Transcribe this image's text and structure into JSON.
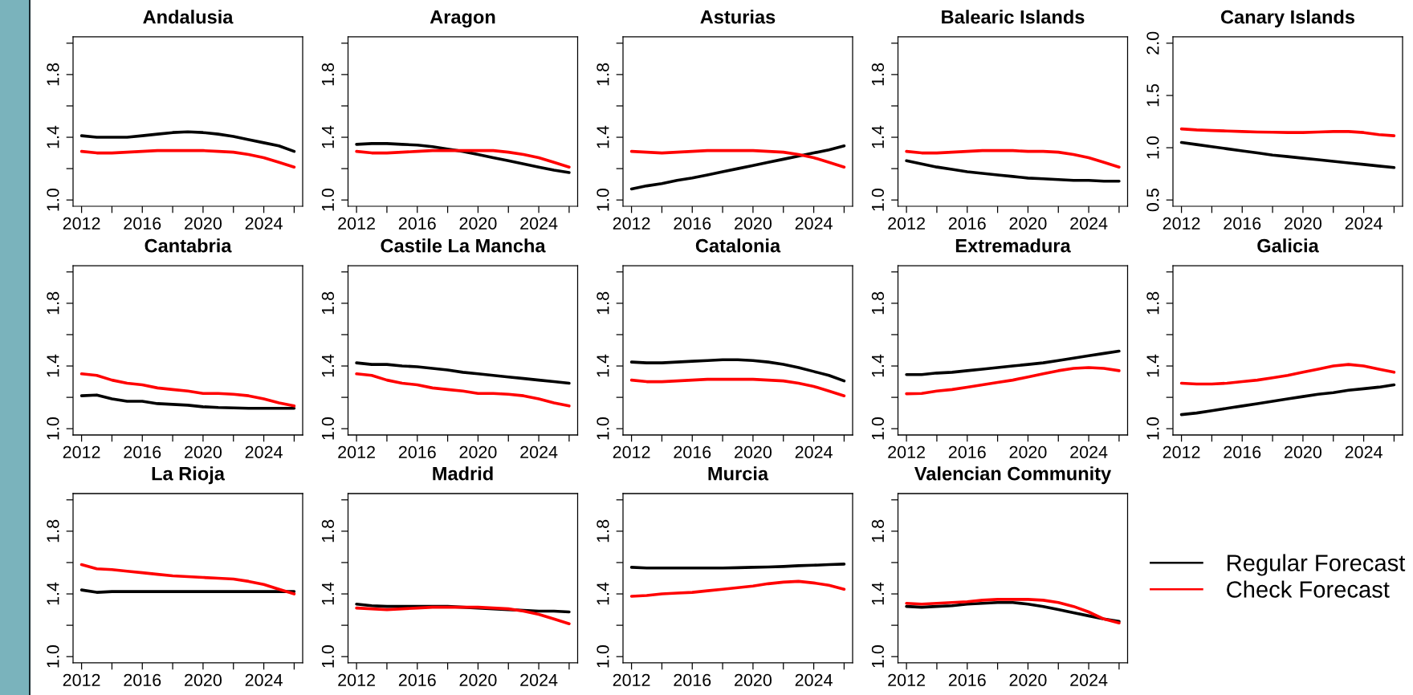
{
  "chart_data": [
    {
      "type": "line",
      "title": "Andalusia",
      "x": [
        2012,
        2013,
        2014,
        2015,
        2016,
        2017,
        2018,
        2019,
        2020,
        2021,
        2022,
        2023,
        2024,
        2025,
        2026
      ],
      "xlim": [
        2011.44,
        2026.56
      ],
      "xticks": [
        2012,
        {
          "value": 2014,
          "label": null
        },
        2016,
        {
          "value": 2018,
          "label": null
        },
        2020,
        {
          "value": 2022,
          "label": null
        },
        2024,
        {
          "value": 2026,
          "label": null
        }
      ],
      "ylim": [
        0.96,
        2.04
      ],
      "yticks": [
        {
          "value": 1.0,
          "label": "1.0"
        },
        {
          "value": 1.2,
          "label": null
        },
        1.4,
        {
          "value": 1.6,
          "label": null
        },
        1.8,
        {
          "value": 2.0,
          "label": null
        }
      ],
      "series": [
        {
          "color": "#000000",
          "values": [
            1.41,
            1.4,
            1.4,
            1.4,
            1.41,
            1.42,
            1.43,
            1.435,
            1.43,
            1.42,
            1.405,
            1.385,
            1.365,
            1.345,
            1.31
          ]
        },
        {
          "color": "#ff0000",
          "values": [
            1.31,
            1.3,
            1.3,
            1.305,
            1.31,
            1.315,
            1.315,
            1.315,
            1.315,
            1.31,
            1.305,
            1.29,
            1.27,
            1.24,
            1.21
          ]
        }
      ]
    },
    {
      "type": "line",
      "title": "Aragon",
      "x": [
        2012,
        2013,
        2014,
        2015,
        2016,
        2017,
        2018,
        2019,
        2020,
        2021,
        2022,
        2023,
        2024,
        2025,
        2026
      ],
      "xlim": [
        2011.44,
        2026.56
      ],
      "xticks": [
        2012,
        {
          "value": 2014,
          "label": null
        },
        2016,
        {
          "value": 2018,
          "label": null
        },
        2020,
        {
          "value": 2022,
          "label": null
        },
        2024,
        {
          "value": 2026,
          "label": null
        }
      ],
      "ylim": [
        0.96,
        2.04
      ],
      "yticks": [
        {
          "value": 1.0,
          "label": "1.0"
        },
        {
          "value": 1.2,
          "label": null
        },
        1.4,
        {
          "value": 1.6,
          "label": null
        },
        1.8,
        {
          "value": 2.0,
          "label": null
        }
      ],
      "series": [
        {
          "color": "#000000",
          "values": [
            1.355,
            1.36,
            1.36,
            1.355,
            1.35,
            1.34,
            1.325,
            1.31,
            1.29,
            1.27,
            1.25,
            1.23,
            1.21,
            1.19,
            1.175
          ]
        },
        {
          "color": "#ff0000",
          "values": [
            1.31,
            1.3,
            1.3,
            1.305,
            1.31,
            1.315,
            1.315,
            1.315,
            1.315,
            1.315,
            1.305,
            1.29,
            1.27,
            1.24,
            1.21
          ]
        }
      ]
    },
    {
      "type": "line",
      "title": "Asturias",
      "x": [
        2012,
        2013,
        2014,
        2015,
        2016,
        2017,
        2018,
        2019,
        2020,
        2021,
        2022,
        2023,
        2024,
        2025,
        2026
      ],
      "xlim": [
        2011.44,
        2026.56
      ],
      "xticks": [
        2012,
        {
          "value": 2014,
          "label": null
        },
        2016,
        {
          "value": 2018,
          "label": null
        },
        2020,
        {
          "value": 2022,
          "label": null
        },
        2024,
        {
          "value": 2026,
          "label": null
        }
      ],
      "ylim": [
        0.96,
        2.04
      ],
      "yticks": [
        {
          "value": 1.0,
          "label": "1.0"
        },
        {
          "value": 1.2,
          "label": null
        },
        1.4,
        {
          "value": 1.6,
          "label": null
        },
        1.8,
        {
          "value": 2.0,
          "label": null
        }
      ],
      "series": [
        {
          "color": "#000000",
          "values": [
            1.07,
            1.09,
            1.105,
            1.125,
            1.14,
            1.16,
            1.18,
            1.2,
            1.22,
            1.24,
            1.26,
            1.28,
            1.3,
            1.32,
            1.345
          ]
        },
        {
          "color": "#ff0000",
          "values": [
            1.31,
            1.305,
            1.3,
            1.305,
            1.31,
            1.315,
            1.315,
            1.315,
            1.315,
            1.31,
            1.305,
            1.29,
            1.27,
            1.24,
            1.21
          ]
        }
      ]
    },
    {
      "type": "line",
      "title": "Balearic Islands",
      "x": [
        2012,
        2013,
        2014,
        2015,
        2016,
        2017,
        2018,
        2019,
        2020,
        2021,
        2022,
        2023,
        2024,
        2025,
        2026
      ],
      "xlim": [
        2011.44,
        2026.56
      ],
      "xticks": [
        2012,
        {
          "value": 2014,
          "label": null
        },
        2016,
        {
          "value": 2018,
          "label": null
        },
        2020,
        {
          "value": 2022,
          "label": null
        },
        2024,
        {
          "value": 2026,
          "label": null
        }
      ],
      "ylim": [
        0.96,
        2.04
      ],
      "yticks": [
        {
          "value": 1.0,
          "label": "1.0"
        },
        {
          "value": 1.2,
          "label": null
        },
        1.4,
        {
          "value": 1.6,
          "label": null
        },
        1.8,
        {
          "value": 2.0,
          "label": null
        }
      ],
      "series": [
        {
          "color": "#000000",
          "values": [
            1.25,
            1.23,
            1.21,
            1.195,
            1.18,
            1.17,
            1.16,
            1.15,
            1.14,
            1.135,
            1.13,
            1.125,
            1.125,
            1.12,
            1.12
          ]
        },
        {
          "color": "#ff0000",
          "values": [
            1.31,
            1.3,
            1.3,
            1.305,
            1.31,
            1.315,
            1.315,
            1.315,
            1.31,
            1.31,
            1.305,
            1.29,
            1.27,
            1.24,
            1.21
          ]
        }
      ]
    },
    {
      "type": "line",
      "title": "Canary Islands",
      "x": [
        2012,
        2013,
        2014,
        2015,
        2016,
        2017,
        2018,
        2019,
        2020,
        2021,
        2022,
        2023,
        2024,
        2025,
        2026
      ],
      "xlim": [
        2011.44,
        2026.56
      ],
      "xticks": [
        2012,
        {
          "value": 2014,
          "label": null
        },
        2016,
        {
          "value": 2018,
          "label": null
        },
        2020,
        {
          "value": 2022,
          "label": null
        },
        2024,
        {
          "value": 2026,
          "label": null
        }
      ],
      "ylim": [
        0.44,
        2.06
      ],
      "yticks": [
        0.5,
        {
          "value": 1.0,
          "label": "1.0"
        },
        1.5,
        {
          "value": 2.0,
          "label": "2.0"
        }
      ],
      "series": [
        {
          "color": "#000000",
          "values": [
            1.05,
            1.03,
            1.01,
            0.99,
            0.97,
            0.95,
            0.93,
            0.915,
            0.9,
            0.885,
            0.87,
            0.855,
            0.84,
            0.825,
            0.81
          ]
        },
        {
          "color": "#ff0000",
          "values": [
            1.18,
            1.17,
            1.165,
            1.16,
            1.155,
            1.15,
            1.148,
            1.145,
            1.145,
            1.15,
            1.155,
            1.155,
            1.145,
            1.125,
            1.115
          ]
        }
      ]
    },
    {
      "type": "line",
      "title": "Cantabria",
      "x": [
        2012,
        2013,
        2014,
        2015,
        2016,
        2017,
        2018,
        2019,
        2020,
        2021,
        2022,
        2023,
        2024,
        2025,
        2026
      ],
      "xlim": [
        2011.44,
        2026.56
      ],
      "xticks": [
        2012,
        {
          "value": 2014,
          "label": null
        },
        2016,
        {
          "value": 2018,
          "label": null
        },
        2020,
        {
          "value": 2022,
          "label": null
        },
        2024,
        {
          "value": 2026,
          "label": null
        }
      ],
      "ylim": [
        0.96,
        2.04
      ],
      "yticks": [
        {
          "value": 1.0,
          "label": "1.0"
        },
        {
          "value": 1.2,
          "label": null
        },
        1.4,
        {
          "value": 1.6,
          "label": null
        },
        1.8,
        {
          "value": 2.0,
          "label": null
        }
      ],
      "series": [
        {
          "color": "#000000",
          "values": [
            1.21,
            1.215,
            1.19,
            1.175,
            1.175,
            1.16,
            1.155,
            1.15,
            1.14,
            1.135,
            1.133,
            1.13,
            1.13,
            1.13,
            1.13
          ]
        },
        {
          "color": "#ff0000",
          "values": [
            1.35,
            1.34,
            1.31,
            1.29,
            1.28,
            1.26,
            1.25,
            1.24,
            1.225,
            1.225,
            1.22,
            1.21,
            1.19,
            1.165,
            1.145
          ]
        }
      ]
    },
    {
      "type": "line",
      "title": "Castile La Mancha",
      "x": [
        2012,
        2013,
        2014,
        2015,
        2016,
        2017,
        2018,
        2019,
        2020,
        2021,
        2022,
        2023,
        2024,
        2025,
        2026
      ],
      "xlim": [
        2011.44,
        2026.56
      ],
      "xticks": [
        2012,
        {
          "value": 2014,
          "label": null
        },
        2016,
        {
          "value": 2018,
          "label": null
        },
        2020,
        {
          "value": 2022,
          "label": null
        },
        2024,
        {
          "value": 2026,
          "label": null
        }
      ],
      "ylim": [
        0.96,
        2.04
      ],
      "yticks": [
        {
          "value": 1.0,
          "label": "1.0"
        },
        {
          "value": 1.2,
          "label": null
        },
        1.4,
        {
          "value": 1.6,
          "label": null
        },
        1.8,
        {
          "value": 2.0,
          "label": null
        }
      ],
      "series": [
        {
          "color": "#000000",
          "values": [
            1.42,
            1.41,
            1.41,
            1.4,
            1.395,
            1.385,
            1.375,
            1.36,
            1.35,
            1.34,
            1.33,
            1.32,
            1.31,
            1.3,
            1.29
          ]
        },
        {
          "color": "#ff0000",
          "values": [
            1.35,
            1.34,
            1.31,
            1.29,
            1.28,
            1.26,
            1.25,
            1.24,
            1.225,
            1.225,
            1.22,
            1.21,
            1.19,
            1.165,
            1.145
          ]
        }
      ]
    },
    {
      "type": "line",
      "title": "Catalonia",
      "x": [
        2012,
        2013,
        2014,
        2015,
        2016,
        2017,
        2018,
        2019,
        2020,
        2021,
        2022,
        2023,
        2024,
        2025,
        2026
      ],
      "xlim": [
        2011.44,
        2026.56
      ],
      "xticks": [
        2012,
        {
          "value": 2014,
          "label": null
        },
        2016,
        {
          "value": 2018,
          "label": null
        },
        2020,
        {
          "value": 2022,
          "label": null
        },
        2024,
        {
          "value": 2026,
          "label": null
        }
      ],
      "ylim": [
        0.96,
        2.04
      ],
      "yticks": [
        {
          "value": 1.0,
          "label": "1.0"
        },
        {
          "value": 1.2,
          "label": null
        },
        1.4,
        {
          "value": 1.6,
          "label": null
        },
        1.8,
        {
          "value": 2.0,
          "label": null
        }
      ],
      "series": [
        {
          "color": "#000000",
          "values": [
            1.425,
            1.42,
            1.42,
            1.425,
            1.43,
            1.435,
            1.44,
            1.44,
            1.435,
            1.425,
            1.41,
            1.39,
            1.365,
            1.34,
            1.305
          ]
        },
        {
          "color": "#ff0000",
          "values": [
            1.31,
            1.3,
            1.3,
            1.305,
            1.31,
            1.315,
            1.315,
            1.315,
            1.315,
            1.31,
            1.305,
            1.29,
            1.27,
            1.24,
            1.21
          ]
        }
      ]
    },
    {
      "type": "line",
      "title": "Extremadura",
      "x": [
        2012,
        2013,
        2014,
        2015,
        2016,
        2017,
        2018,
        2019,
        2020,
        2021,
        2022,
        2023,
        2024,
        2025,
        2026
      ],
      "xlim": [
        2011.44,
        2026.56
      ],
      "xticks": [
        2012,
        {
          "value": 2014,
          "label": null
        },
        2016,
        {
          "value": 2018,
          "label": null
        },
        2020,
        {
          "value": 2022,
          "label": null
        },
        2024,
        {
          "value": 2026,
          "label": null
        }
      ],
      "ylim": [
        0.96,
        2.04
      ],
      "yticks": [
        {
          "value": 1.0,
          "label": "1.0"
        },
        {
          "value": 1.2,
          "label": null
        },
        1.4,
        {
          "value": 1.6,
          "label": null
        },
        1.8,
        {
          "value": 2.0,
          "label": null
        }
      ],
      "series": [
        {
          "color": "#000000",
          "values": [
            1.345,
            1.345,
            1.355,
            1.36,
            1.37,
            1.38,
            1.39,
            1.4,
            1.41,
            1.42,
            1.435,
            1.45,
            1.465,
            1.48,
            1.495
          ]
        },
        {
          "color": "#ff0000",
          "values": [
            1.223,
            1.225,
            1.24,
            1.25,
            1.265,
            1.28,
            1.295,
            1.31,
            1.33,
            1.35,
            1.37,
            1.385,
            1.39,
            1.385,
            1.37
          ]
        }
      ]
    },
    {
      "type": "line",
      "title": "Galicia",
      "x": [
        2012,
        2013,
        2014,
        2015,
        2016,
        2017,
        2018,
        2019,
        2020,
        2021,
        2022,
        2023,
        2024,
        2025,
        2026
      ],
      "xlim": [
        2011.44,
        2026.56
      ],
      "xticks": [
        2012,
        {
          "value": 2014,
          "label": null
        },
        2016,
        {
          "value": 2018,
          "label": null
        },
        2020,
        {
          "value": 2022,
          "label": null
        },
        2024,
        {
          "value": 2026,
          "label": null
        }
      ],
      "ylim": [
        0.96,
        2.04
      ],
      "yticks": [
        {
          "value": 1.0,
          "label": "1.0"
        },
        {
          "value": 1.2,
          "label": null
        },
        1.4,
        {
          "value": 1.6,
          "label": null
        },
        1.8,
        {
          "value": 2.0,
          "label": null
        }
      ],
      "series": [
        {
          "color": "#000000",
          "values": [
            1.09,
            1.1,
            1.115,
            1.13,
            1.145,
            1.16,
            1.175,
            1.19,
            1.205,
            1.22,
            1.23,
            1.245,
            1.255,
            1.265,
            1.28
          ]
        },
        {
          "color": "#ff0000",
          "values": [
            1.29,
            1.285,
            1.285,
            1.29,
            1.3,
            1.31,
            1.325,
            1.34,
            1.36,
            1.38,
            1.4,
            1.41,
            1.4,
            1.38,
            1.36
          ]
        }
      ]
    },
    {
      "type": "line",
      "title": "La Rioja",
      "x": [
        2012,
        2013,
        2014,
        2015,
        2016,
        2017,
        2018,
        2019,
        2020,
        2021,
        2022,
        2023,
        2024,
        2025,
        2026
      ],
      "xlim": [
        2011.44,
        2026.56
      ],
      "xticks": [
        2012,
        {
          "value": 2014,
          "label": null
        },
        2016,
        {
          "value": 2018,
          "label": null
        },
        2020,
        {
          "value": 2022,
          "label": null
        },
        2024,
        {
          "value": 2026,
          "label": null
        }
      ],
      "ylim": [
        0.96,
        2.04
      ],
      "yticks": [
        {
          "value": 1.0,
          "label": "1.0"
        },
        {
          "value": 1.2,
          "label": null
        },
        1.4,
        {
          "value": 1.6,
          "label": null
        },
        1.8,
        {
          "value": 2.0,
          "label": null
        }
      ],
      "series": [
        {
          "color": "#000000",
          "values": [
            1.425,
            1.41,
            1.415,
            1.415,
            1.415,
            1.415,
            1.415,
            1.415,
            1.415,
            1.415,
            1.415,
            1.415,
            1.415,
            1.415,
            1.415
          ]
        },
        {
          "color": "#ff0000",
          "values": [
            1.587,
            1.56,
            1.555,
            1.545,
            1.535,
            1.525,
            1.515,
            1.51,
            1.505,
            1.5,
            1.495,
            1.48,
            1.46,
            1.43,
            1.4
          ]
        }
      ]
    },
    {
      "type": "line",
      "title": "Madrid",
      "x": [
        2012,
        2013,
        2014,
        2015,
        2016,
        2017,
        2018,
        2019,
        2020,
        2021,
        2022,
        2023,
        2024,
        2025,
        2026
      ],
      "xlim": [
        2011.44,
        2026.56
      ],
      "xticks": [
        2012,
        {
          "value": 2014,
          "label": null
        },
        2016,
        {
          "value": 2018,
          "label": null
        },
        2020,
        {
          "value": 2022,
          "label": null
        },
        2024,
        {
          "value": 2026,
          "label": null
        }
      ],
      "ylim": [
        0.96,
        2.04
      ],
      "yticks": [
        {
          "value": 1.0,
          "label": "1.0"
        },
        {
          "value": 1.2,
          "label": null
        },
        1.4,
        {
          "value": 1.6,
          "label": null
        },
        1.8,
        {
          "value": 2.0,
          "label": null
        }
      ],
      "series": [
        {
          "color": "#000000",
          "values": [
            1.335,
            1.325,
            1.32,
            1.32,
            1.32,
            1.32,
            1.32,
            1.315,
            1.31,
            1.305,
            1.3,
            1.295,
            1.29,
            1.29,
            1.285
          ]
        },
        {
          "color": "#ff0000",
          "values": [
            1.31,
            1.305,
            1.3,
            1.305,
            1.31,
            1.315,
            1.315,
            1.315,
            1.315,
            1.31,
            1.305,
            1.29,
            1.27,
            1.24,
            1.21
          ]
        }
      ]
    },
    {
      "type": "line",
      "title": "Murcia",
      "x": [
        2012,
        2013,
        2014,
        2015,
        2016,
        2017,
        2018,
        2019,
        2020,
        2021,
        2022,
        2023,
        2024,
        2025,
        2026
      ],
      "xlim": [
        2011.44,
        2026.56
      ],
      "xticks": [
        2012,
        {
          "value": 2014,
          "label": null
        },
        2016,
        {
          "value": 2018,
          "label": null
        },
        2020,
        {
          "value": 2022,
          "label": null
        },
        2024,
        {
          "value": 2026,
          "label": null
        }
      ],
      "ylim": [
        0.96,
        2.04
      ],
      "yticks": [
        {
          "value": 1.0,
          "label": "1.0"
        },
        {
          "value": 1.2,
          "label": null
        },
        1.4,
        {
          "value": 1.6,
          "label": null
        },
        1.8,
        {
          "value": 2.0,
          "label": null
        }
      ],
      "series": [
        {
          "color": "#000000",
          "values": [
            1.57,
            1.565,
            1.565,
            1.565,
            1.565,
            1.565,
            1.565,
            1.567,
            1.57,
            1.572,
            1.575,
            1.58,
            1.583,
            1.587,
            1.59
          ]
        },
        {
          "color": "#ff0000",
          "values": [
            1.385,
            1.39,
            1.4,
            1.405,
            1.41,
            1.42,
            1.43,
            1.44,
            1.45,
            1.465,
            1.475,
            1.48,
            1.47,
            1.455,
            1.43
          ]
        }
      ]
    },
    {
      "type": "line",
      "title": "Valencian Community",
      "x": [
        2012,
        2013,
        2014,
        2015,
        2016,
        2017,
        2018,
        2019,
        2020,
        2021,
        2022,
        2023,
        2024,
        2025,
        2026
      ],
      "xlim": [
        2011.44,
        2026.56
      ],
      "xticks": [
        2012,
        {
          "value": 2014,
          "label": null
        },
        2016,
        {
          "value": 2018,
          "label": null
        },
        2020,
        {
          "value": 2022,
          "label": null
        },
        2024,
        {
          "value": 2026,
          "label": null
        }
      ],
      "ylim": [
        0.96,
        2.04
      ],
      "yticks": [
        {
          "value": 1.0,
          "label": "1.0"
        },
        {
          "value": 1.2,
          "label": null
        },
        1.4,
        {
          "value": 1.6,
          "label": null
        },
        1.8,
        {
          "value": 2.0,
          "label": null
        }
      ],
      "legend": "right",
      "series": [
        {
          "name": "Regular Forecast",
          "color": "#000000",
          "values": [
            1.32,
            1.315,
            1.32,
            1.325,
            1.335,
            1.34,
            1.345,
            1.345,
            1.335,
            1.32,
            1.3,
            1.28,
            1.26,
            1.24,
            1.225
          ]
        },
        {
          "name": "Check Forecast",
          "color": "#ff0000",
          "values": [
            1.34,
            1.335,
            1.34,
            1.345,
            1.35,
            1.36,
            1.365,
            1.365,
            1.365,
            1.36,
            1.345,
            1.32,
            1.285,
            1.24,
            1.215
          ]
        }
      ]
    }
  ]
}
